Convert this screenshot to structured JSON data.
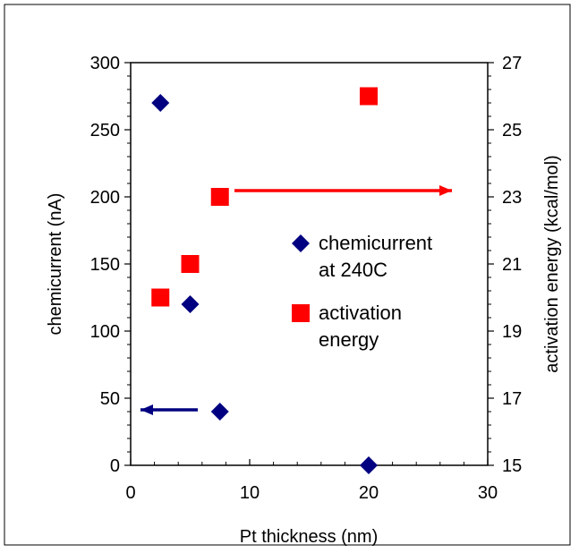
{
  "chart_data": {
    "type": "scatter",
    "xlabel": "Pt thickness (nm)",
    "ylabel": "chemicurrent (nA)",
    "y2label": "activation energy (kcal/mol)",
    "xlim": [
      0,
      30
    ],
    "ylim": [
      0,
      300
    ],
    "y2lim": [
      15,
      27
    ],
    "x_ticks": [
      "0",
      "10",
      "20",
      "30"
    ],
    "y_ticks": [
      "0",
      "50",
      "100",
      "150",
      "200",
      "250",
      "300"
    ],
    "y2_ticks": [
      "15",
      "17",
      "19",
      "21",
      "23",
      "25",
      "27"
    ],
    "series": [
      {
        "name": "chemicurrent at 240C",
        "legend_lines": [
          "chemicurrent",
          "at 240C"
        ],
        "axis": "left",
        "marker": "diamond",
        "color": "#000080",
        "points": [
          {
            "x": 2.5,
            "y": 270
          },
          {
            "x": 5,
            "y": 120
          },
          {
            "x": 7.5,
            "y": 40
          },
          {
            "x": 20,
            "y": 0
          }
        ]
      },
      {
        "name": "activation energy",
        "legend_lines": [
          "activation",
          "energy"
        ],
        "axis": "right",
        "marker": "square",
        "color": "#ff0000",
        "points": [
          {
            "x": 2.5,
            "y": 20
          },
          {
            "x": 5,
            "y": 21
          },
          {
            "x": 7.5,
            "y": 23
          },
          {
            "x": 20,
            "y": 26
          }
        ]
      }
    ],
    "arrows": [
      {
        "series": "chemicurrent at 240C",
        "direction": "left",
        "color": "#000080"
      },
      {
        "series": "activation energy",
        "direction": "right",
        "color": "#ff0000"
      }
    ],
    "grid": false,
    "legend_position": "center-right"
  }
}
